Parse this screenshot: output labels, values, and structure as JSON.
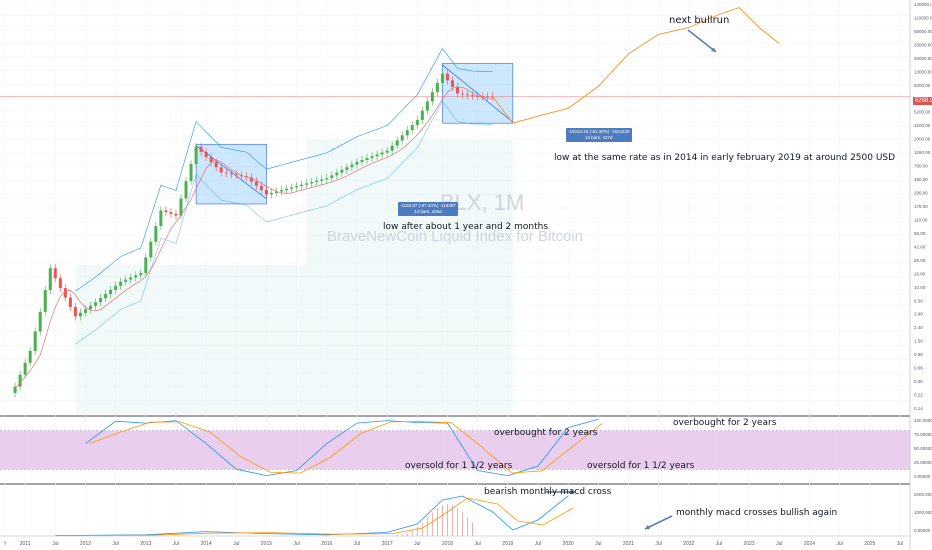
{
  "watermark": {
    "symbol": "BLX, 1M",
    "title": "BraveNewCoin Liquid Index for Bitcoin"
  },
  "annotations": {
    "next_bullrun": "next bullrun",
    "low_2014": "low after about 1 year and 2 months",
    "low_2019": "low at the same rate as in 2014 in early february 2019 at around 2500 USD",
    "overbought_1": "overbought for 2 years",
    "overbought_2": "overbought for 2 years",
    "oversold_1": "oversold for 1 1/2 years",
    "oversold_2": "oversold for 1 1/2 years",
    "macd_bearish": "bearish monthly macd cross",
    "macd_bullish": "monthly macd crosses bullish again"
  },
  "measure_boxes": [
    {
      "line1": "-1183.87 (-87.30%) -118387",
      "line2": "14 bars, 426d"
    },
    {
      "line1": "-16242.25 (-81.30%) -1624225",
      "line2": "14 bars, 427d"
    }
  ],
  "current_price": "6298.99",
  "colors": {
    "up_candle": "#4caf50",
    "down_candle": "#ef5350",
    "projection": "#f7931a",
    "box_fill": "#90caf9",
    "box_stroke": "#2962ff",
    "band": "#2196f3",
    "stoch_zone": "#e1bee7",
    "macd_hist": "#ef9a9a",
    "price_line": "#ef5350"
  },
  "chart_data": [
    {
      "type": "candlestick",
      "title": "",
      "x_axis_labels": [
        "f",
        "2011",
        "Jul",
        "2012",
        "Jul",
        "2013",
        "Jul",
        "2014",
        "Jul",
        "2015",
        "Jul",
        "2016",
        "Jul",
        "2017",
        "Jul",
        "2018",
        "Jul",
        "2019",
        "Jul",
        "2020",
        "Jul",
        "2021",
        "Jul",
        "2022",
        "Jul",
        "2023",
        "Jul",
        "2024",
        "Jul",
        "2025",
        "Jul"
      ],
      "y_axis_labels": [
        "140000.00",
        "110000.00",
        "55000.00",
        "33000.00",
        "20000.00",
        "13000.00",
        "8200.00",
        "6298.99",
        "5200.00",
        "3200.00",
        "2000.00",
        "1280.00",
        "760.00",
        "480.00",
        "290.00",
        "178.00",
        "110.00",
        "68.00",
        "42.00",
        "26.00",
        "16.00",
        "10.00",
        "6.30",
        "3.90",
        "2.40",
        "1.50",
        "0.95",
        "0.58",
        "0.36",
        "0.22",
        "0.14"
      ],
      "y_scale": "log",
      "ylim": [
        0.1,
        170000
      ],
      "price_series": [
        {
          "date": "2010-11",
          "close": 0.26
        },
        {
          "date": "2011-02",
          "close": 0.9
        },
        {
          "date": "2011-04",
          "close": 3.5
        },
        {
          "date": "2011-06",
          "close": 16
        },
        {
          "date": "2011-08",
          "close": 8
        },
        {
          "date": "2011-11",
          "close": 3
        },
        {
          "date": "2012-03",
          "close": 4.9
        },
        {
          "date": "2012-08",
          "close": 10
        },
        {
          "date": "2012-12",
          "close": 13.5
        },
        {
          "date": "2013-04",
          "close": 120
        },
        {
          "date": "2013-07",
          "close": 100
        },
        {
          "date": "2013-11",
          "close": 1100
        },
        {
          "date": "2014-04",
          "close": 450
        },
        {
          "date": "2014-09",
          "close": 380
        },
        {
          "date": "2015-01",
          "close": 210
        },
        {
          "date": "2015-07",
          "close": 280
        },
        {
          "date": "2016-01",
          "close": 370
        },
        {
          "date": "2016-07",
          "close": 650
        },
        {
          "date": "2017-01",
          "close": 960
        },
        {
          "date": "2017-07",
          "close": 2800
        },
        {
          "date": "2017-12",
          "close": 14000
        },
        {
          "date": "2018-03",
          "close": 7000
        },
        {
          "date": "2018-06",
          "close": 6400
        },
        {
          "date": "2018-10",
          "close": 6299
        }
      ],
      "projection_series": [
        {
          "date": "2019-02",
          "close": 2500
        },
        {
          "date": "2019-07",
          "close": 3200
        },
        {
          "date": "2020-01",
          "close": 4200
        },
        {
          "date": "2020-07",
          "close": 9000
        },
        {
          "date": "2021-01",
          "close": 28000
        },
        {
          "date": "2021-07",
          "close": 55000
        },
        {
          "date": "2022-01",
          "close": 70000
        },
        {
          "date": "2022-07",
          "close": 110000
        },
        {
          "date": "2022-11",
          "close": 140000
        },
        {
          "date": "2023-03",
          "close": 70000
        },
        {
          "date": "2023-07",
          "close": 40000
        }
      ]
    },
    {
      "type": "line",
      "title": "",
      "y_axis_labels": [
        "100.00000",
        "75.00000",
        "50.00000",
        "25.00000",
        "0.00000"
      ],
      "ylim": [
        0,
        100
      ],
      "zone": [
        20,
        80
      ],
      "series": [
        {
          "values": [
            {
              "date": "2012-01",
              "v": 60
            },
            {
              "date": "2012-07",
              "v": 95
            },
            {
              "date": "2013-01",
              "v": 92
            },
            {
              "date": "2013-07",
              "v": 96
            },
            {
              "date": "2014-01",
              "v": 60
            },
            {
              "date": "2014-07",
              "v": 20
            },
            {
              "date": "2015-01",
              "v": 10
            },
            {
              "date": "2015-07",
              "v": 18
            },
            {
              "date": "2016-01",
              "v": 60
            },
            {
              "date": "2016-07",
              "v": 92
            },
            {
              "date": "2017-01",
              "v": 96
            },
            {
              "date": "2017-07",
              "v": 93
            },
            {
              "date": "2018-01",
              "v": 92
            },
            {
              "date": "2018-07",
              "v": 18
            },
            {
              "date": "2019-01",
              "v": 10
            },
            {
              "date": "2019-07",
              "v": 25
            },
            {
              "date": "2020-01",
              "v": 85
            },
            {
              "date": "2020-07",
              "v": 98
            }
          ]
        }
      ]
    },
    {
      "type": "line",
      "title": "",
      "y_axis_labels": [
        "2000.00000",
        "1000.00000",
        "0.00000"
      ],
      "ylim": [
        0,
        2500
      ],
      "series": [
        {
          "values": [
            {
              "date": "2011-07",
              "v": 20
            },
            {
              "date": "2013-01",
              "v": 60
            },
            {
              "date": "2014-01",
              "v": 220
            },
            {
              "date": "2015-01",
              "v": 120
            },
            {
              "date": "2016-01",
              "v": 60
            },
            {
              "date": "2017-01",
              "v": 180
            },
            {
              "date": "2017-07",
              "v": 600
            },
            {
              "date": "2017-12",
              "v": 1800
            },
            {
              "date": "2018-04",
              "v": 2000
            },
            {
              "date": "2018-10",
              "v": 1200
            },
            {
              "date": "2019-02",
              "v": 300
            },
            {
              "date": "2019-07",
              "v": 800
            },
            {
              "date": "2020-01",
              "v": 2000
            }
          ]
        }
      ]
    }
  ]
}
